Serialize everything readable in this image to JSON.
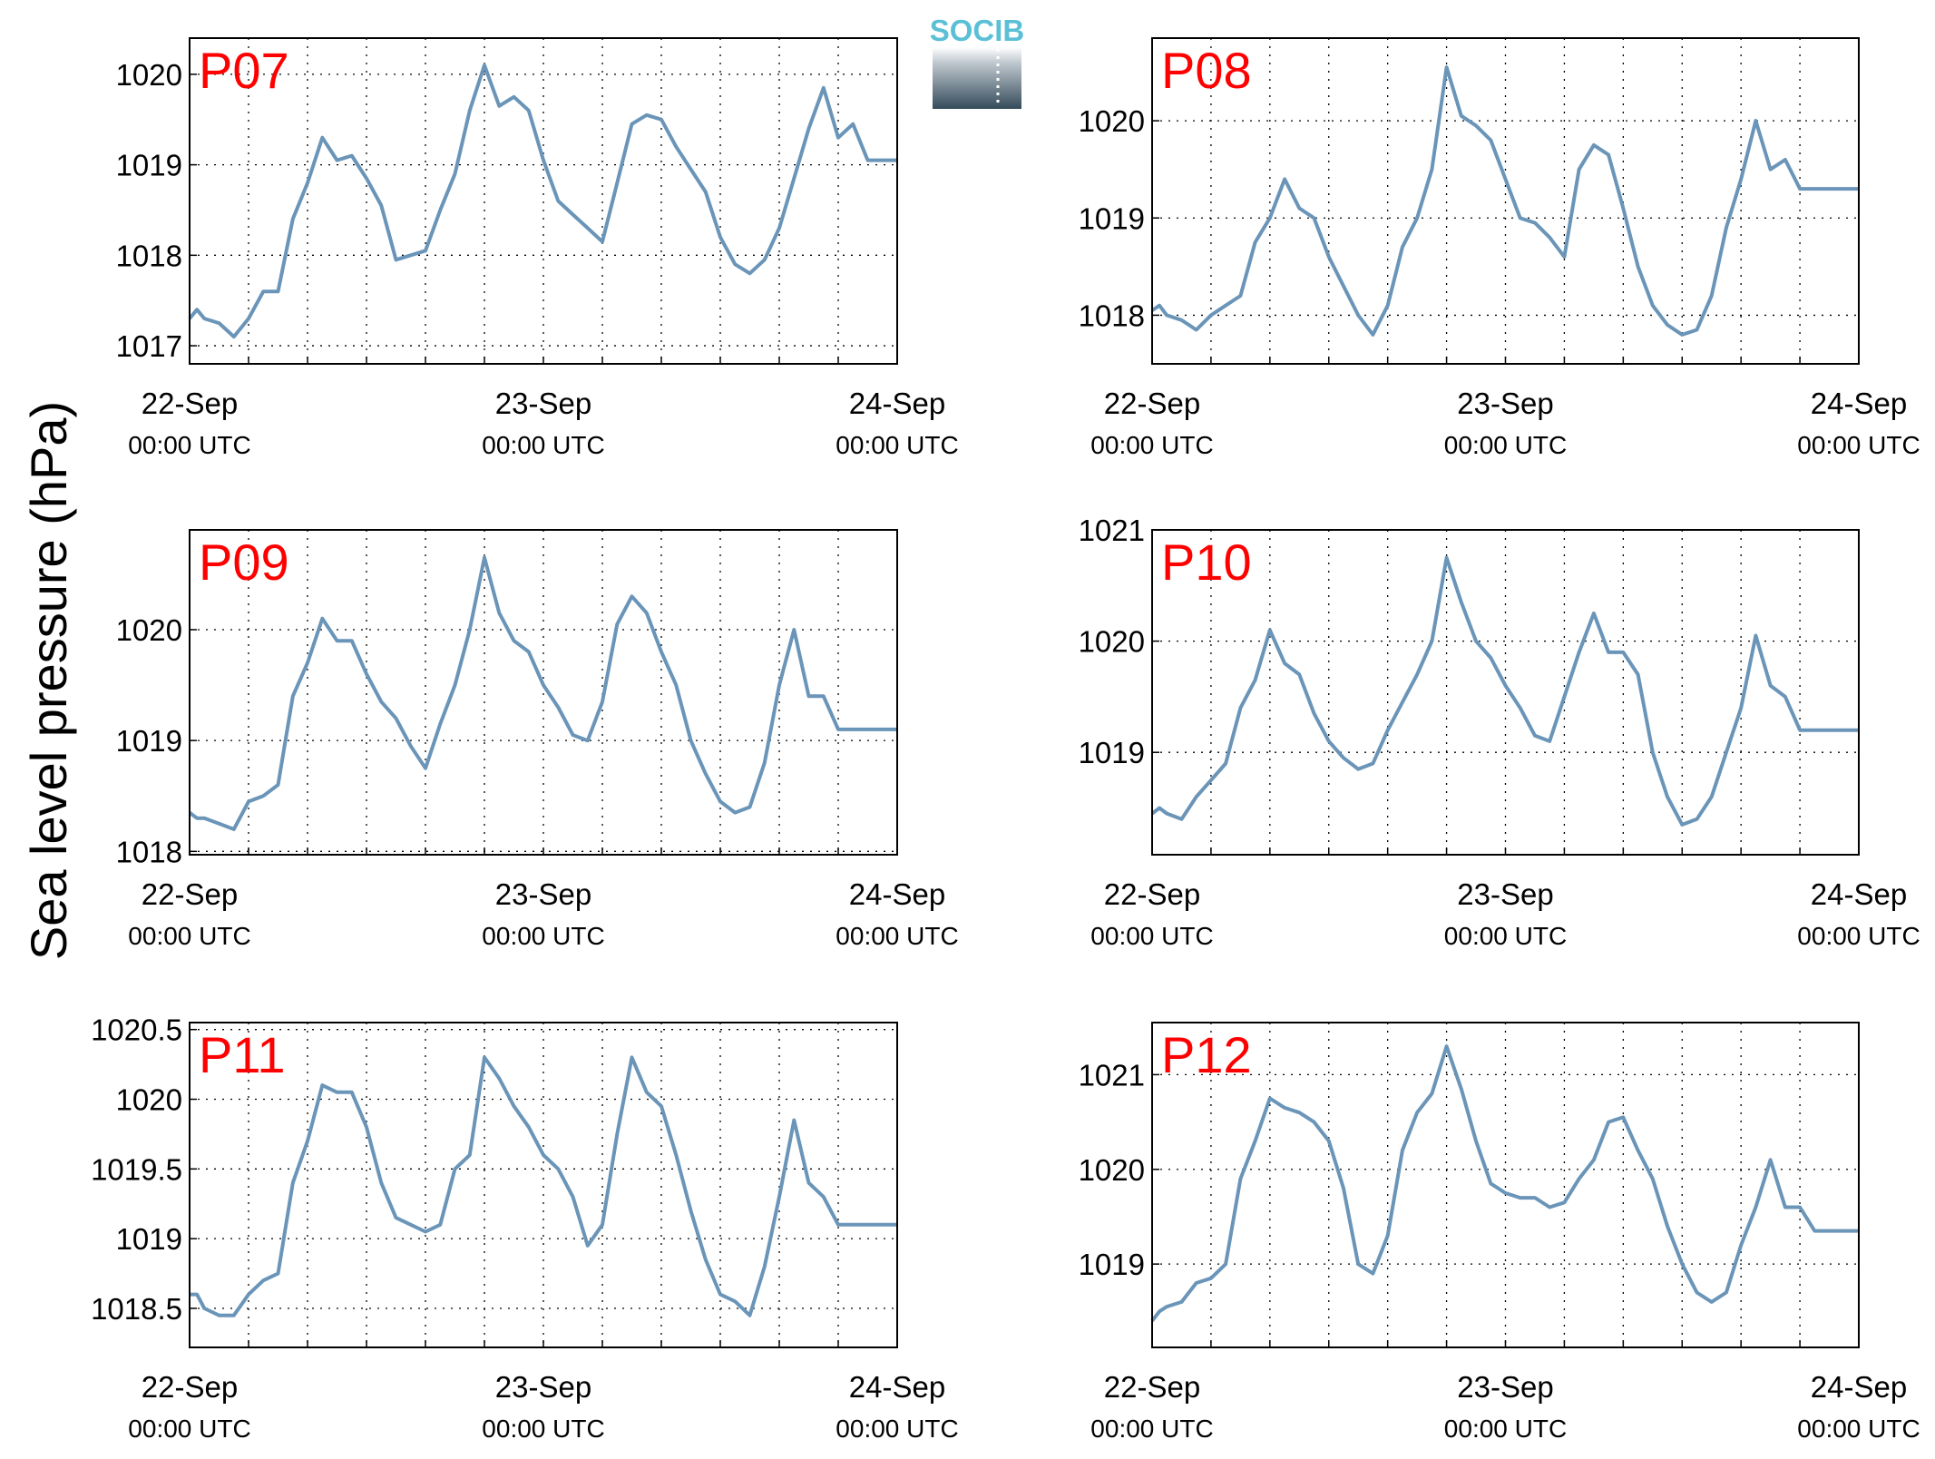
{
  "figure": {
    "ylabel": "Sea level pressure (hPa)",
    "logo_text": "SOCIB",
    "colors": {
      "line": "#6a95b8",
      "panel_label": "#ff0000",
      "logo_text": "#5bbfd6",
      "logo_dark": "#344b5a"
    }
  },
  "chart_data": [
    {
      "type": "line",
      "panel": "P07",
      "x_ticks": [
        {
          "date": "22-Sep",
          "time": "00:00 UTC"
        },
        {
          "date": "23-Sep",
          "time": "00:00 UTC"
        },
        {
          "date": "24-Sep",
          "time": "00:00 UTC"
        }
      ],
      "y_ticks": [
        "1017",
        "1018",
        "1019",
        "1020"
      ],
      "xlim": [
        0,
        48
      ],
      "ylim": [
        1016.8,
        1020.4
      ],
      "grid": true,
      "series": [
        {
          "x": [
            0,
            0.5,
            1,
            2,
            3,
            4,
            5,
            6,
            7,
            8,
            9,
            10,
            11,
            12,
            13,
            14,
            15,
            16,
            17,
            18,
            19,
            20,
            21,
            22,
            23,
            24,
            25,
            26,
            27,
            28,
            29,
            30,
            31,
            32,
            33,
            34,
            35,
            36,
            37,
            38,
            39,
            40,
            41,
            42,
            43,
            44,
            45,
            46,
            47,
            48
          ],
          "y": [
            1017.3,
            1017.4,
            1017.3,
            1017.25,
            1017.1,
            1017.3,
            1017.6,
            1017.6,
            1018.4,
            1018.8,
            1019.3,
            1019.05,
            1019.1,
            1018.85,
            1018.55,
            1017.95,
            1018.0,
            1018.05,
            1018.5,
            1018.9,
            1019.6,
            1020.1,
            1019.65,
            1019.75,
            1019.6,
            1019.05,
            1018.6,
            1018.45,
            1018.3,
            1018.15,
            1018.8,
            1019.45,
            1019.55,
            1019.5,
            1019.2,
            1018.95,
            1018.7,
            1018.2,
            1017.9,
            1017.8,
            1017.95,
            1018.3,
            1018.85,
            1019.4,
            1019.85,
            1019.3,
            1019.45,
            1019.05,
            1019.05,
            1019.05
          ]
        }
      ]
    },
    {
      "type": "line",
      "panel": "P08",
      "x_ticks": [
        {
          "date": "22-Sep",
          "time": "00:00 UTC"
        },
        {
          "date": "23-Sep",
          "time": "00:00 UTC"
        },
        {
          "date": "24-Sep",
          "time": "00:00 UTC"
        }
      ],
      "y_ticks": [
        "1018",
        "1019",
        "1020"
      ],
      "xlim": [
        0,
        48
      ],
      "ylim": [
        1017.5,
        1020.85
      ],
      "grid": true,
      "series": [
        {
          "x": [
            0,
            0.5,
            1,
            2,
            3,
            4,
            5,
            6,
            7,
            8,
            9,
            10,
            11,
            12,
            13,
            14,
            15,
            16,
            17,
            18,
            19,
            20,
            21,
            22,
            23,
            24,
            25,
            26,
            27,
            28,
            29,
            30,
            31,
            32,
            33,
            34,
            35,
            36,
            37,
            38,
            39,
            40,
            41,
            42,
            43,
            44,
            45,
            46,
            47,
            48
          ],
          "y": [
            1018.05,
            1018.1,
            1018.0,
            1017.95,
            1017.85,
            1018.0,
            1018.1,
            1018.2,
            1018.75,
            1019.0,
            1019.4,
            1019.1,
            1019.0,
            1018.6,
            1018.3,
            1018.0,
            1017.8,
            1018.1,
            1018.7,
            1019.0,
            1019.5,
            1020.55,
            1020.05,
            1019.95,
            1019.8,
            1019.4,
            1019.0,
            1018.95,
            1018.8,
            1018.6,
            1019.5,
            1019.75,
            1019.65,
            1019.1,
            1018.5,
            1018.1,
            1017.9,
            1017.8,
            1017.85,
            1018.2,
            1018.9,
            1019.4,
            1020.0,
            1019.5,
            1019.6,
            1019.3,
            1019.3,
            1019.3,
            1019.3,
            1019.3
          ]
        }
      ]
    },
    {
      "type": "line",
      "panel": "P09",
      "x_ticks": [
        {
          "date": "22-Sep",
          "time": "00:00 UTC"
        },
        {
          "date": "23-Sep",
          "time": "00:00 UTC"
        },
        {
          "date": "24-Sep",
          "time": "00:00 UTC"
        }
      ],
      "y_ticks": [
        "1018",
        "1019",
        "1020"
      ],
      "xlim": [
        0,
        48
      ],
      "ylim": [
        1017.97,
        1020.9
      ],
      "grid": true,
      "series": [
        {
          "x": [
            0,
            0.5,
            1,
            2,
            3,
            4,
            5,
            6,
            7,
            8,
            9,
            10,
            11,
            12,
            13,
            14,
            15,
            16,
            17,
            18,
            19,
            20,
            21,
            22,
            23,
            24,
            25,
            26,
            27,
            28,
            29,
            30,
            31,
            32,
            33,
            34,
            35,
            36,
            37,
            38,
            39,
            40,
            41,
            42,
            43,
            44,
            45,
            46,
            47,
            48
          ],
          "y": [
            1018.35,
            1018.3,
            1018.3,
            1018.25,
            1018.2,
            1018.45,
            1018.5,
            1018.6,
            1019.4,
            1019.7,
            1020.1,
            1019.9,
            1019.9,
            1019.6,
            1019.35,
            1019.2,
            1018.95,
            1018.75,
            1019.15,
            1019.5,
            1020.0,
            1020.65,
            1020.15,
            1019.9,
            1019.8,
            1019.5,
            1019.3,
            1019.05,
            1019.0,
            1019.35,
            1020.05,
            1020.3,
            1020.15,
            1019.8,
            1019.5,
            1019.0,
            1018.7,
            1018.45,
            1018.35,
            1018.4,
            1018.8,
            1019.5,
            1020.0,
            1019.4,
            1019.4,
            1019.1,
            1019.1,
            1019.1,
            1019.1,
            1019.1
          ]
        }
      ]
    },
    {
      "type": "line",
      "panel": "P10",
      "x_ticks": [
        {
          "date": "22-Sep",
          "time": "00:00 UTC"
        },
        {
          "date": "23-Sep",
          "time": "00:00 UTC"
        },
        {
          "date": "24-Sep",
          "time": "00:00 UTC"
        }
      ],
      "y_ticks": [
        "1019",
        "1020",
        "1021"
      ],
      "xlim": [
        0,
        48
      ],
      "ylim": [
        1018.08,
        1021.0
      ],
      "grid": true,
      "series": [
        {
          "x": [
            0,
            0.5,
            1,
            2,
            3,
            4,
            5,
            6,
            7,
            8,
            9,
            10,
            11,
            12,
            13,
            14,
            15,
            16,
            17,
            18,
            19,
            20,
            21,
            22,
            23,
            24,
            25,
            26,
            27,
            28,
            29,
            30,
            31,
            32,
            33,
            34,
            35,
            36,
            37,
            38,
            39,
            40,
            41,
            42,
            43,
            44,
            45,
            46,
            47,
            48
          ],
          "y": [
            1018.45,
            1018.5,
            1018.45,
            1018.4,
            1018.6,
            1018.75,
            1018.9,
            1019.4,
            1019.65,
            1020.1,
            1019.8,
            1019.7,
            1019.35,
            1019.1,
            1018.95,
            1018.85,
            1018.9,
            1019.2,
            1019.45,
            1019.7,
            1020.0,
            1020.75,
            1020.35,
            1020.0,
            1019.85,
            1019.6,
            1019.4,
            1019.15,
            1019.1,
            1019.5,
            1019.9,
            1020.25,
            1019.9,
            1019.9,
            1019.7,
            1019.0,
            1018.6,
            1018.35,
            1018.4,
            1018.6,
            1019.0,
            1019.4,
            1020.05,
            1019.6,
            1019.5,
            1019.2,
            1019.2,
            1019.2,
            1019.2,
            1019.2
          ]
        }
      ]
    },
    {
      "type": "line",
      "panel": "P11",
      "x_ticks": [
        {
          "date": "22-Sep",
          "time": "00:00 UTC"
        },
        {
          "date": "23-Sep",
          "time": "00:00 UTC"
        },
        {
          "date": "24-Sep",
          "time": "00:00 UTC"
        }
      ],
      "y_ticks": [
        "1018.5",
        "1019",
        "1019.5",
        "1020",
        "1020.5"
      ],
      "xlim": [
        0,
        48
      ],
      "ylim": [
        1018.22,
        1020.55
      ],
      "grid": true,
      "series": [
        {
          "x": [
            0,
            0.5,
            1,
            2,
            3,
            4,
            5,
            6,
            7,
            8,
            9,
            10,
            11,
            12,
            13,
            14,
            15,
            16,
            17,
            18,
            19,
            20,
            21,
            22,
            23,
            24,
            25,
            26,
            27,
            28,
            29,
            30,
            31,
            32,
            33,
            34,
            35,
            36,
            37,
            38,
            39,
            40,
            41,
            42,
            43,
            44,
            45,
            46,
            47,
            48
          ],
          "y": [
            1018.6,
            1018.6,
            1018.5,
            1018.45,
            1018.45,
            1018.6,
            1018.7,
            1018.75,
            1019.4,
            1019.7,
            1020.1,
            1020.05,
            1020.05,
            1019.8,
            1019.4,
            1019.15,
            1019.1,
            1019.05,
            1019.1,
            1019.5,
            1019.6,
            1020.3,
            1020.15,
            1019.95,
            1019.8,
            1019.6,
            1019.5,
            1019.3,
            1018.95,
            1019.1,
            1019.75,
            1020.3,
            1020.05,
            1019.95,
            1019.6,
            1019.2,
            1018.85,
            1018.6,
            1018.55,
            1018.45,
            1018.8,
            1019.3,
            1019.85,
            1019.4,
            1019.3,
            1019.1,
            1019.1,
            1019.1,
            1019.1,
            1019.1
          ]
        }
      ]
    },
    {
      "type": "line",
      "panel": "P12",
      "x_ticks": [
        {
          "date": "22-Sep",
          "time": "00:00 UTC"
        },
        {
          "date": "23-Sep",
          "time": "00:00 UTC"
        },
        {
          "date": "24-Sep",
          "time": "00:00 UTC"
        }
      ],
      "y_ticks": [
        "1019",
        "1020",
        "1021"
      ],
      "xlim": [
        0,
        48
      ],
      "ylim": [
        1018.12,
        1021.55
      ],
      "grid": true,
      "series": [
        {
          "x": [
            0,
            0.5,
            1,
            2,
            3,
            4,
            5,
            6,
            7,
            8,
            9,
            10,
            11,
            12,
            13,
            14,
            15,
            16,
            17,
            18,
            19,
            20,
            21,
            22,
            23,
            24,
            25,
            26,
            27,
            28,
            29,
            30,
            31,
            32,
            33,
            34,
            35,
            36,
            37,
            38,
            39,
            40,
            41,
            42,
            43,
            44,
            45,
            46,
            47,
            48
          ],
          "y": [
            1018.4,
            1018.5,
            1018.55,
            1018.6,
            1018.8,
            1018.85,
            1019.0,
            1019.9,
            1020.3,
            1020.75,
            1020.65,
            1020.6,
            1020.5,
            1020.3,
            1019.8,
            1019.0,
            1018.9,
            1019.3,
            1020.2,
            1020.6,
            1020.8,
            1021.3,
            1020.85,
            1020.3,
            1019.85,
            1019.75,
            1019.7,
            1019.7,
            1019.6,
            1019.65,
            1019.9,
            1020.1,
            1020.5,
            1020.55,
            1020.2,
            1019.9,
            1019.4,
            1019.0,
            1018.7,
            1018.6,
            1018.7,
            1019.2,
            1019.6,
            1020.1,
            1019.6,
            1019.6,
            1019.35,
            1019.35,
            1019.35,
            1019.35
          ]
        }
      ]
    }
  ]
}
